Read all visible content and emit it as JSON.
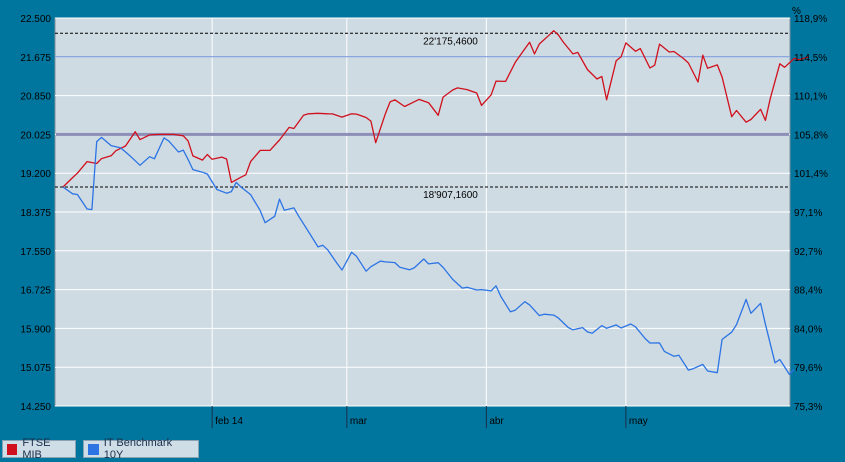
{
  "chart_data": {
    "type": "line",
    "left_axis": {
      "ticks": [
        "22.500",
        "21.675",
        "20.850",
        "20.025",
        "19.200",
        "18.375",
        "17.550",
        "16.725",
        "15.900",
        "15.075",
        "14.250"
      ],
      "min": 14250,
      "max": 22500
    },
    "right_axis": {
      "ticks": [
        "118,9%",
        "114,5%",
        "110,1%",
        "105,8%",
        "101,4%",
        "97,1%",
        "92,7%",
        "88,4%",
        "84,0%",
        "79,6%",
        "75,3%"
      ],
      "unit": "%",
      "min": 75.3,
      "max": 118.9
    },
    "x_ticks": [
      {
        "label": "feb 14",
        "x": 31
      },
      {
        "label": "mar",
        "x": 59
      },
      {
        "label": "abr",
        "x": 88
      },
      {
        "label": "may",
        "x": 117
      }
    ],
    "x_range": [
      0,
      148
    ],
    "reference_lines": [
      {
        "value": 22175.46,
        "label": "22'175,4600",
        "style": "dashed"
      },
      {
        "value": 18907.16,
        "label": "18'907,1600",
        "style": "dashed"
      },
      {
        "value": 21675,
        "style": "solid",
        "color": "#6f8fd8"
      },
      {
        "value": 20025,
        "style": "band",
        "color": "#8d8fb8"
      }
    ],
    "series": [
      {
        "name": "FTSE MIB",
        "color": "#d0101c",
        "values": [
          [
            0,
            18907
          ],
          [
            2,
            19106
          ],
          [
            3,
            19200
          ],
          [
            5,
            19447
          ],
          [
            7,
            19406
          ],
          [
            8,
            19510
          ],
          [
            10,
            19571
          ],
          [
            11,
            19678
          ],
          [
            13,
            19778
          ],
          [
            15,
            20083
          ],
          [
            16,
            19915
          ],
          [
            18,
            20015
          ],
          [
            20,
            20025
          ],
          [
            21,
            20025
          ],
          [
            23,
            20025
          ],
          [
            25,
            19995
          ],
          [
            26,
            19887
          ],
          [
            27,
            19567
          ],
          [
            29,
            19478
          ],
          [
            30,
            19597
          ],
          [
            31,
            19496
          ],
          [
            33,
            19542
          ],
          [
            34,
            19501
          ],
          [
            35,
            19005
          ],
          [
            37,
            19116
          ],
          [
            38,
            19165
          ],
          [
            39,
            19446
          ],
          [
            41,
            19685
          ],
          [
            43,
            19684
          ],
          [
            45,
            19906
          ],
          [
            47,
            20174
          ],
          [
            48,
            20151
          ],
          [
            50,
            20431
          ],
          [
            51,
            20464
          ],
          [
            53,
            20474
          ],
          [
            55,
            20463
          ],
          [
            56,
            20461
          ],
          [
            58,
            20393
          ],
          [
            60,
            20463
          ],
          [
            61,
            20456
          ],
          [
            63,
            20384
          ],
          [
            64,
            20308
          ],
          [
            65,
            19849
          ],
          [
            67,
            20460
          ],
          [
            68,
            20716
          ],
          [
            69,
            20761
          ],
          [
            71,
            20618
          ],
          [
            73,
            20719
          ],
          [
            74,
            20770
          ],
          [
            76,
            20700
          ],
          [
            78,
            20431
          ],
          [
            79,
            20818
          ],
          [
            81,
            20969
          ],
          [
            82,
            21013
          ],
          [
            84,
            20978
          ],
          [
            86,
            20906
          ],
          [
            87,
            20642
          ],
          [
            89,
            20868
          ],
          [
            90,
            21159
          ],
          [
            92,
            21151
          ],
          [
            94,
            21555
          ],
          [
            96,
            21842
          ],
          [
            97,
            21984
          ],
          [
            98,
            21737
          ],
          [
            99,
            21947
          ],
          [
            101,
            22132
          ],
          [
            102,
            22231
          ],
          [
            103,
            22136
          ],
          [
            104,
            21987
          ],
          [
            106,
            21736
          ],
          [
            107,
            21769
          ],
          [
            109,
            21406
          ],
          [
            111,
            21204
          ],
          [
            112,
            21258
          ],
          [
            113,
            20761
          ],
          [
            115,
            21593
          ],
          [
            116,
            21675
          ],
          [
            117,
            21970
          ],
          [
            119,
            21793
          ],
          [
            120,
            21849
          ],
          [
            122,
            21436
          ],
          [
            123,
            21496
          ],
          [
            124,
            21944
          ],
          [
            126,
            21776
          ],
          [
            127,
            21788
          ],
          [
            129,
            21636
          ],
          [
            130,
            21544
          ],
          [
            132,
            21140
          ],
          [
            133,
            21708
          ],
          [
            134,
            21430
          ],
          [
            136,
            21503
          ],
          [
            137,
            21246
          ],
          [
            139,
            20402
          ],
          [
            140,
            20533
          ],
          [
            142,
            20285
          ],
          [
            143,
            20342
          ],
          [
            145,
            20558
          ],
          [
            146,
            20322
          ],
          [
            147,
            20781
          ],
          [
            149,
            21527
          ],
          [
            150,
            21452
          ],
          [
            152,
            21642
          ],
          [
            153,
            21616
          ],
          [
            155,
            21671
          ]
        ]
      },
      {
        "name": "IT Benchmark 10Y",
        "color": "#2c74e4",
        "values": [
          [
            0,
            18907
          ],
          [
            2,
            18763
          ],
          [
            3,
            18747
          ],
          [
            5,
            18438
          ],
          [
            6,
            18426
          ],
          [
            7,
            19872
          ],
          [
            8,
            19962
          ],
          [
            10,
            19786
          ],
          [
            12,
            19739
          ],
          [
            14,
            19561
          ],
          [
            16,
            19368
          ],
          [
            18,
            19551
          ],
          [
            19,
            19506
          ],
          [
            21,
            19950
          ],
          [
            22,
            19883
          ],
          [
            24,
            19651
          ],
          [
            25,
            19688
          ],
          [
            26,
            19492
          ],
          [
            27,
            19276
          ],
          [
            29,
            19222
          ],
          [
            30,
            19183
          ],
          [
            32,
            18854
          ],
          [
            34,
            18775
          ],
          [
            35,
            18808
          ],
          [
            36,
            19005
          ],
          [
            37,
            18906
          ],
          [
            39,
            18745
          ],
          [
            41,
            18404
          ],
          [
            42,
            18147
          ],
          [
            44,
            18284
          ],
          [
            45,
            18650
          ],
          [
            46,
            18411
          ],
          [
            48,
            18463
          ],
          [
            49,
            18286
          ],
          [
            51,
            17960
          ],
          [
            53,
            17633
          ],
          [
            54,
            17668
          ],
          [
            55,
            17573
          ],
          [
            57,
            17278
          ],
          [
            58,
            17142
          ],
          [
            60,
            17520
          ],
          [
            61,
            17433
          ],
          [
            63,
            17117
          ],
          [
            64,
            17212
          ],
          [
            66,
            17332
          ],
          [
            67,
            17315
          ],
          [
            69,
            17299
          ],
          [
            70,
            17199
          ],
          [
            72,
            17147
          ],
          [
            73,
            17186
          ],
          [
            75,
            17376
          ],
          [
            76,
            17272
          ],
          [
            78,
            17296
          ],
          [
            79,
            17197
          ],
          [
            81,
            16941
          ],
          [
            83,
            16756
          ],
          [
            84,
            16774
          ],
          [
            86,
            16717
          ],
          [
            87,
            16724
          ],
          [
            89,
            16700
          ],
          [
            90,
            16805
          ],
          [
            91,
            16580
          ],
          [
            93,
            16252
          ],
          [
            94,
            16287
          ],
          [
            96,
            16467
          ],
          [
            97,
            16399
          ],
          [
            99,
            16173
          ],
          [
            100,
            16202
          ],
          [
            102,
            16183
          ],
          [
            103,
            16119
          ],
          [
            105,
            15922
          ],
          [
            106,
            15870
          ],
          [
            108,
            15916
          ],
          [
            109,
            15826
          ],
          [
            110,
            15797
          ],
          [
            112,
            15959
          ],
          [
            113,
            15903
          ],
          [
            115,
            15975
          ],
          [
            116,
            15909
          ],
          [
            118,
            15994
          ],
          [
            119,
            15933
          ],
          [
            121,
            15685
          ],
          [
            122,
            15590
          ],
          [
            124,
            15592
          ],
          [
            125,
            15410
          ],
          [
            127,
            15306
          ],
          [
            128,
            15330
          ],
          [
            130,
            15014
          ],
          [
            131,
            15044
          ],
          [
            133,
            15135
          ],
          [
            134,
            14994
          ],
          [
            136,
            14958
          ],
          [
            137,
            15666
          ],
          [
            139,
            15819
          ],
          [
            140,
            15980
          ],
          [
            142,
            16517
          ],
          [
            143,
            16222
          ],
          [
            145,
            16434
          ],
          [
            146,
            15990
          ],
          [
            148,
            15169
          ],
          [
            149,
            15239
          ],
          [
            151,
            14922
          ],
          [
            152,
            15032
          ]
        ]
      }
    ],
    "legend": [
      {
        "label": "FTSE MIB",
        "color": "#d0101c"
      },
      {
        "label": "IT Benchmark 10Y",
        "color": "#2c74e4"
      }
    ]
  }
}
